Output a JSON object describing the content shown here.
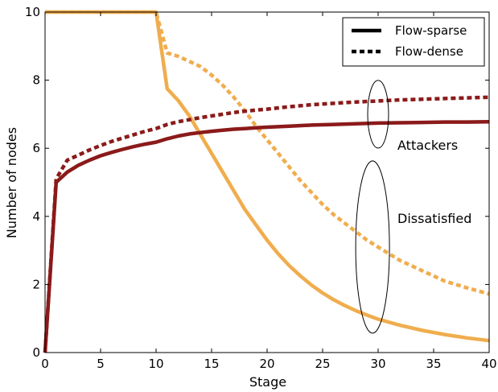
{
  "chart_data": {
    "type": "line",
    "xlabel": "Stage",
    "ylabel": "Number of nodes",
    "xlim": [
      0,
      40
    ],
    "ylim": [
      0,
      10
    ],
    "xticks": [
      0,
      5,
      10,
      15,
      20,
      25,
      30,
      35,
      40
    ],
    "yticks": [
      0,
      2,
      4,
      6,
      8,
      10
    ],
    "grid": false,
    "legend": {
      "placement": "top-right",
      "entries": [
        {
          "label": "Flow-sparse",
          "style": "solid"
        },
        {
          "label": "Flow-dense",
          "style": "dashed"
        }
      ]
    },
    "annotations": [
      {
        "text": "Attackers",
        "ellipse_center": [
          30,
          7.0
        ]
      },
      {
        "text": "Dissatisfied",
        "ellipse_center": [
          29.5,
          3.1
        ]
      }
    ],
    "colors": {
      "attackers": "#8b1a1a",
      "dissatisfied": "#f0ad4e"
    },
    "series": [
      {
        "group": "Attackers",
        "style": "solid",
        "color": "#8b1a1a",
        "points": [
          [
            0,
            0
          ],
          [
            1,
            5.0
          ],
          [
            2,
            5.3
          ],
          [
            3,
            5.5
          ],
          [
            4,
            5.65
          ],
          [
            5,
            5.78
          ],
          [
            6,
            5.88
          ],
          [
            7,
            5.97
          ],
          [
            8,
            6.05
          ],
          [
            9,
            6.12
          ],
          [
            10,
            6.18
          ],
          [
            11,
            6.28
          ],
          [
            12,
            6.36
          ],
          [
            13,
            6.42
          ],
          [
            14,
            6.46
          ],
          [
            15,
            6.5
          ],
          [
            16,
            6.53
          ],
          [
            17,
            6.56
          ],
          [
            18,
            6.58
          ],
          [
            19,
            6.6
          ],
          [
            20,
            6.62
          ],
          [
            22,
            6.65
          ],
          [
            24,
            6.68
          ],
          [
            26,
            6.7
          ],
          [
            28,
            6.72
          ],
          [
            30,
            6.74
          ],
          [
            32,
            6.75
          ],
          [
            34,
            6.76
          ],
          [
            36,
            6.77
          ],
          [
            38,
            6.77
          ],
          [
            40,
            6.78
          ]
        ]
      },
      {
        "group": "Attackers",
        "style": "dashed",
        "color": "#8b1a1a",
        "points": [
          [
            0,
            0
          ],
          [
            1,
            5.1
          ],
          [
            2,
            5.65
          ],
          [
            3,
            5.8
          ],
          [
            4,
            5.95
          ],
          [
            5,
            6.08
          ],
          [
            6,
            6.2
          ],
          [
            7,
            6.3
          ],
          [
            8,
            6.4
          ],
          [
            9,
            6.5
          ],
          [
            10,
            6.58
          ],
          [
            11,
            6.7
          ],
          [
            12,
            6.78
          ],
          [
            13,
            6.84
          ],
          [
            14,
            6.9
          ],
          [
            15,
            6.95
          ],
          [
            16,
            7.0
          ],
          [
            17,
            7.05
          ],
          [
            18,
            7.09
          ],
          [
            19,
            7.12
          ],
          [
            20,
            7.15
          ],
          [
            22,
            7.22
          ],
          [
            24,
            7.28
          ],
          [
            26,
            7.32
          ],
          [
            28,
            7.36
          ],
          [
            30,
            7.39
          ],
          [
            32,
            7.42
          ],
          [
            34,
            7.44
          ],
          [
            36,
            7.46
          ],
          [
            38,
            7.48
          ],
          [
            40,
            7.5
          ]
        ]
      },
      {
        "group": "Dissatisfied",
        "style": "solid",
        "color": "#f0ad4e",
        "points": [
          [
            0,
            10
          ],
          [
            10,
            10
          ],
          [
            11,
            7.75
          ],
          [
            12,
            7.4
          ],
          [
            13,
            6.95
          ],
          [
            14,
            6.4
          ],
          [
            15,
            5.85
          ],
          [
            16,
            5.3
          ],
          [
            17,
            4.75
          ],
          [
            18,
            4.2
          ],
          [
            19,
            3.75
          ],
          [
            20,
            3.3
          ],
          [
            21,
            2.9
          ],
          [
            22,
            2.55
          ],
          [
            23,
            2.25
          ],
          [
            24,
            1.98
          ],
          [
            25,
            1.75
          ],
          [
            26,
            1.55
          ],
          [
            27,
            1.38
          ],
          [
            28,
            1.23
          ],
          [
            29,
            1.1
          ],
          [
            30,
            0.98
          ],
          [
            32,
            0.8
          ],
          [
            34,
            0.65
          ],
          [
            36,
            0.53
          ],
          [
            38,
            0.43
          ],
          [
            40,
            0.35
          ]
        ]
      },
      {
        "group": "Dissatisfied",
        "style": "dashed",
        "color": "#f0ad4e",
        "points": [
          [
            0,
            10
          ],
          [
            10,
            10
          ],
          [
            11,
            8.8
          ],
          [
            12,
            8.7
          ],
          [
            13,
            8.55
          ],
          [
            14,
            8.4
          ],
          [
            15,
            8.15
          ],
          [
            16,
            7.85
          ],
          [
            17,
            7.5
          ],
          [
            18,
            7.1
          ],
          [
            19,
            6.65
          ],
          [
            20,
            6.25
          ],
          [
            21,
            5.85
          ],
          [
            22,
            5.45
          ],
          [
            23,
            5.05
          ],
          [
            24,
            4.7
          ],
          [
            25,
            4.35
          ],
          [
            26,
            4.05
          ],
          [
            27,
            3.8
          ],
          [
            28,
            3.55
          ],
          [
            29,
            3.3
          ],
          [
            30,
            3.1
          ],
          [
            32,
            2.7
          ],
          [
            34,
            2.4
          ],
          [
            36,
            2.1
          ],
          [
            38,
            1.9
          ],
          [
            40,
            1.72
          ]
        ]
      }
    ]
  }
}
